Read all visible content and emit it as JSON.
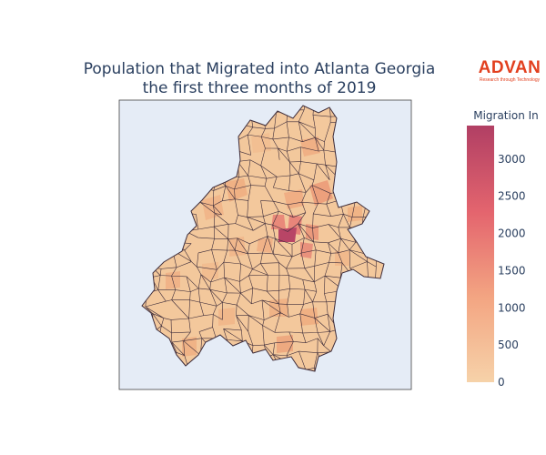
{
  "chart": {
    "title_line1": "Population that Migrated into Atlanta Georgia",
    "title_line2": "the first three months of 2019"
  },
  "logo": {
    "wordmark": "ADVAN",
    "tagline": "Research through Technology"
  },
  "colorbar": {
    "title": "Migration In",
    "ticks": [
      "0",
      "500",
      "1000",
      "1500",
      "2000",
      "2500",
      "3000"
    ],
    "tick_values": [
      0,
      500,
      1000,
      1500,
      2000,
      2500,
      3000
    ],
    "range": [
      0,
      3450
    ],
    "colorscale": [
      "#f6d2a9",
      "#f3a582",
      "#e4656e",
      "#b13f64"
    ]
  },
  "colors": {
    "map_background": "#e5ecf6",
    "boundary": "#3d2c3a",
    "text": "#2a3f5f",
    "brand": "#e2401f"
  }
}
